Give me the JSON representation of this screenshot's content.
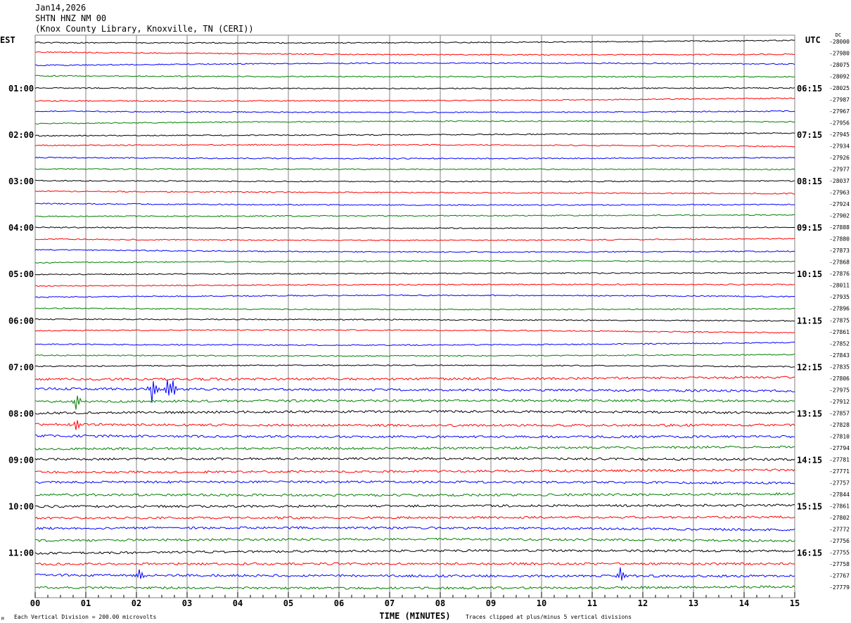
{
  "header": {
    "date": "Jan14,2026",
    "station": "SHTN HNZ NM 00",
    "location": "(Knox County Library, Knoxville, TN (CERI))"
  },
  "chart_data": {
    "type": "line",
    "title": "SHTN HNZ NM 00",
    "xlabel": "TIME (MINUTES)",
    "xlim": [
      0,
      15
    ],
    "x_ticks": [
      "00",
      "01",
      "02",
      "03",
      "04",
      "05",
      "06",
      "07",
      "08",
      "09",
      "10",
      "11",
      "12",
      "13",
      "14",
      "15"
    ],
    "left_axis_title": "EST",
    "right_axis_title": "UTC",
    "dc_title": "DC",
    "left_labels": [
      "01:00",
      "02:00",
      "03:00",
      "04:00",
      "05:00",
      "06:00",
      "07:00",
      "08:00",
      "09:00",
      "10:00",
      "11:00"
    ],
    "right_labels": [
      "06:15",
      "07:15",
      "08:15",
      "09:15",
      "10:15",
      "11:15",
      "12:15",
      "13:15",
      "14:15",
      "15:15",
      "16:15"
    ],
    "label_every_traces": 4,
    "trace_colors": [
      "#000000",
      "#ff0000",
      "#0000ff",
      "#008000"
    ],
    "grid_color": "#808080",
    "dc_offsets": [
      -28000,
      -27980,
      -28075,
      -28092,
      -28025,
      -27987,
      -27967,
      -27956,
      -27945,
      -27934,
      -27926,
      -27977,
      -28037,
      -27963,
      -27924,
      -27902,
      -27888,
      -27880,
      -27873,
      -27868,
      -27876,
      -28011,
      -27935,
      -27896,
      -27875,
      -27861,
      -27852,
      -27843,
      -27835,
      -27806,
      -27975,
      -27912,
      -27857,
      -27828,
      -27810,
      -27794,
      -27781,
      -27771,
      -27757,
      -27844,
      -27861,
      -27802,
      -27772,
      -27756,
      -27755,
      -27758,
      -27767,
      -27779
    ],
    "events": [
      {
        "trace": 30,
        "minute": 2.3,
        "amp": 22
      },
      {
        "trace": 30,
        "minute": 2.6,
        "amp": 16
      },
      {
        "trace": 30,
        "minute": 2.7,
        "amp": 14
      },
      {
        "trace": 31,
        "minute": 0.8,
        "amp": 14
      },
      {
        "trace": 33,
        "minute": 0.8,
        "amp": 10
      },
      {
        "trace": 46,
        "minute": 11.55,
        "amp": 12
      },
      {
        "trace": 46,
        "minute": 2.05,
        "amp": 8
      }
    ],
    "footer_left": "Each Vertical Division =  200.00 microvolts",
    "footer_right": "Traces clipped at plus/minus 5 vertical divisions",
    "corner_mark": "M"
  }
}
